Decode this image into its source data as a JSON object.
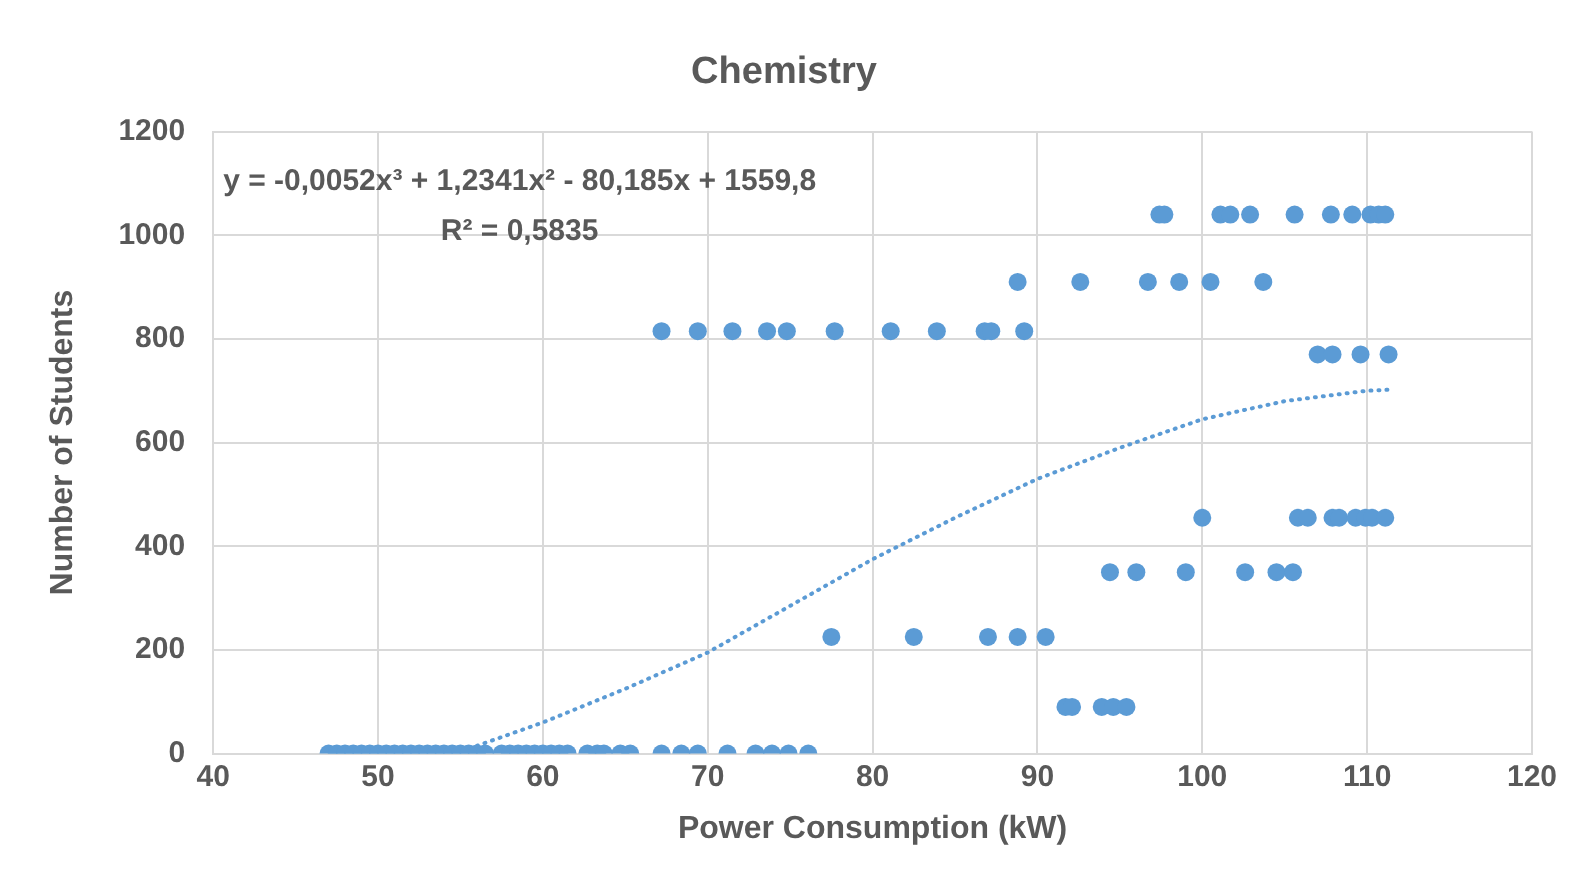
{
  "chart_data": {
    "type": "scatter",
    "title": "Chemistry",
    "xlabel": "Power Consumption (kW)",
    "ylabel": "Number of Students",
    "xlim": [
      40,
      120
    ],
    "xticks": [
      40,
      50,
      60,
      70,
      80,
      90,
      100,
      110,
      120
    ],
    "ylim": [
      0,
      1200
    ],
    "yticks": [
      0,
      200,
      400,
      600,
      800,
      1000,
      1200
    ],
    "grid": true,
    "legend": false,
    "annotations": [
      "y = -0,0052x³ + 1,2341x² - 80,185x + 1559,8",
      "R² = 0,5835"
    ],
    "series": [
      {
        "color": "#5b9bd5",
        "marker": "circle",
        "x": [
          47,
          47.5,
          48,
          48.5,
          49,
          49.5,
          50,
          50.5,
          51,
          51.5,
          52,
          52.5,
          53,
          53.5,
          54,
          54.5,
          55,
          55.5,
          56,
          56.5,
          57.5,
          58,
          58.5,
          59,
          59.5,
          60,
          60.5,
          61,
          61.5,
          62.7,
          63.3,
          63.7,
          64.7,
          65.3,
          67.2,
          68.4,
          69.4,
          71.2,
          72.9,
          73.9,
          74.9,
          76.1,
          91.7,
          92.1,
          93.9,
          94.6,
          95.4,
          77.5,
          82.5,
          87,
          88.8,
          90.5,
          94.4,
          96,
          99,
          102.6,
          104.5,
          105.5,
          100,
          105.8,
          106.4,
          107.9,
          108.3,
          109.3,
          109.9,
          110.3,
          111.1,
          107,
          107.9,
          109.6,
          111.3,
          67.2,
          69.4,
          71.5,
          73.6,
          74.8,
          77.7,
          81.1,
          83.9,
          86.8,
          87.2,
          89.2,
          88.8,
          92.6,
          96.7,
          98.6,
          100.5,
          103.7,
          97.4,
          97.7,
          101.1,
          101.7,
          102.9,
          105.6,
          107.8,
          109.1,
          110.2,
          110.7,
          111.1
        ],
        "values": [
          0,
          0,
          0,
          0,
          0,
          0,
          0,
          0,
          0,
          0,
          0,
          0,
          0,
          0,
          0,
          0,
          0,
          0,
          0,
          0,
          0,
          0,
          0,
          0,
          0,
          0,
          0,
          0,
          0,
          0,
          0,
          0,
          0,
          0,
          0,
          0,
          0,
          0,
          0,
          0,
          0,
          0,
          90,
          90,
          90,
          90,
          90,
          225,
          225,
          225,
          225,
          225,
          350,
          350,
          350,
          350,
          350,
          350,
          455,
          455,
          455,
          455,
          455,
          455,
          455,
          455,
          455,
          770,
          770,
          770,
          770,
          815,
          815,
          815,
          815,
          815,
          815,
          815,
          815,
          815,
          815,
          815,
          910,
          910,
          910,
          910,
          910,
          910,
          1040,
          1040,
          1040,
          1040,
          1040,
          1040,
          1040,
          1040,
          1040,
          1040,
          1040
        ]
      },
      {
        "type": "line",
        "color": "#5b9bd5",
        "marker": "none",
        "line_style": "dotted",
        "x": [
          56,
          60,
          65,
          70,
          75,
          80,
          85,
          90,
          95,
          100,
          105,
          110,
          111.3
        ],
        "values": [
          15,
          60,
          125,
          195,
          285,
          375,
          455,
          530,
          590,
          645,
          680,
          700,
          702
        ]
      }
    ]
  }
}
